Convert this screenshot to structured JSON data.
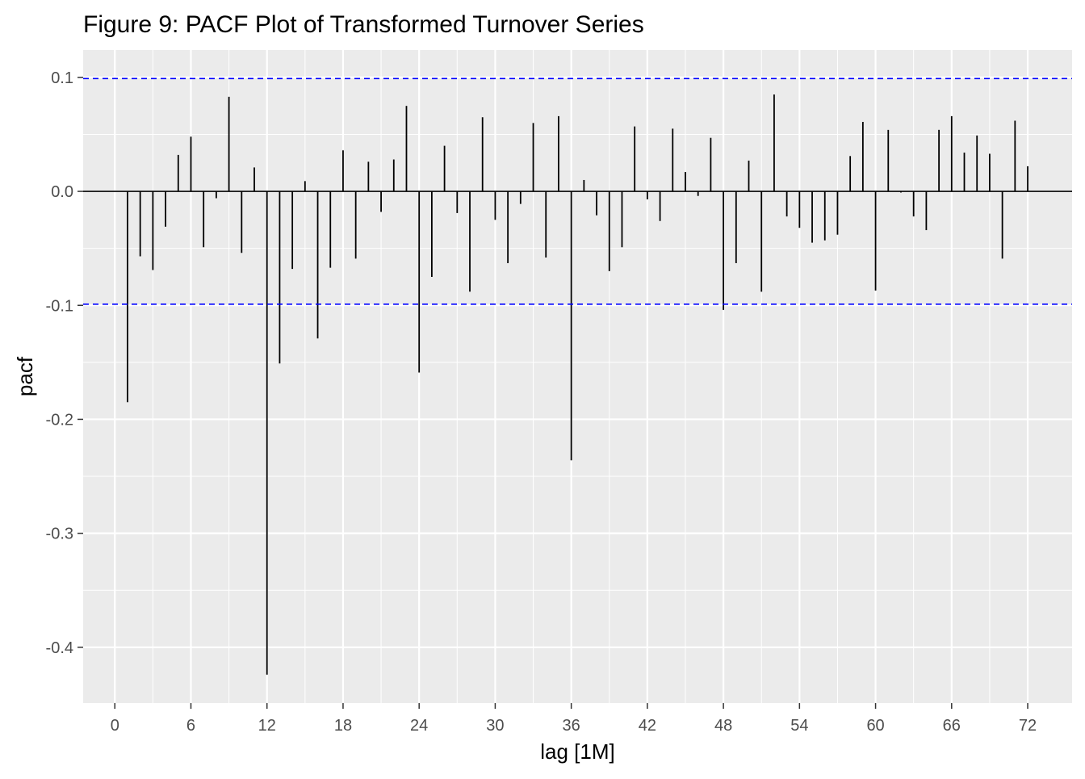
{
  "chart_data": {
    "type": "bar",
    "title": "Figure 9: PACF Plot of Transformed Turnover Series",
    "xlabel": "lag [1M]",
    "ylabel": "pacf",
    "xlim": [
      -2.5,
      75.5
    ],
    "ylim": [
      -0.449,
      0.124
    ],
    "x_ticks": [
      0,
      6,
      12,
      18,
      24,
      30,
      36,
      42,
      48,
      54,
      60,
      66,
      72
    ],
    "y_ticks": [
      0.1,
      0.0,
      -0.1,
      -0.2,
      -0.3,
      -0.4
    ],
    "y_tick_labels": [
      "0.1",
      "0.0",
      "-0.1",
      "-0.2",
      "-0.3",
      "-0.4"
    ],
    "confidence_limits": [
      0.099,
      -0.099
    ],
    "grid": true,
    "colors": {
      "panel_background": "#EBEBEB",
      "grid_major": "#FFFFFF",
      "bars": "#000000",
      "confidence_lines": "#0000FF"
    },
    "lags": [
      1,
      2,
      3,
      4,
      5,
      6,
      7,
      8,
      9,
      10,
      11,
      12,
      13,
      14,
      15,
      16,
      17,
      18,
      19,
      20,
      21,
      22,
      23,
      24,
      25,
      26,
      27,
      28,
      29,
      30,
      31,
      32,
      33,
      34,
      35,
      36,
      37,
      38,
      39,
      40,
      41,
      42,
      43,
      44,
      45,
      46,
      47,
      48,
      49,
      50,
      51,
      52,
      53,
      54,
      55,
      56,
      57,
      58,
      59,
      60,
      61,
      62,
      63,
      64,
      65,
      66,
      67,
      68,
      69,
      70,
      71,
      72
    ],
    "values": [
      -0.185,
      -0.057,
      -0.069,
      -0.031,
      0.032,
      0.048,
      -0.049,
      -0.006,
      0.083,
      -0.054,
      0.021,
      -0.424,
      -0.151,
      -0.068,
      0.009,
      -0.129,
      -0.067,
      0.036,
      -0.059,
      0.026,
      -0.018,
      0.028,
      0.075,
      -0.159,
      -0.075,
      0.04,
      -0.019,
      -0.088,
      0.065,
      -0.025,
      -0.063,
      -0.011,
      0.06,
      -0.058,
      0.066,
      -0.236,
      0.01,
      -0.021,
      -0.07,
      -0.049,
      0.057,
      -0.007,
      -0.026,
      0.055,
      0.017,
      -0.004,
      0.047,
      -0.104,
      -0.063,
      0.027,
      -0.088,
      0.085,
      -0.022,
      -0.032,
      -0.045,
      -0.043,
      -0.038,
      0.031,
      0.061,
      -0.087,
      0.054,
      -0.001,
      -0.022,
      -0.034,
      0.054,
      0.066,
      0.034,
      0.049,
      0.033,
      -0.059,
      0.062,
      0.022
    ]
  }
}
